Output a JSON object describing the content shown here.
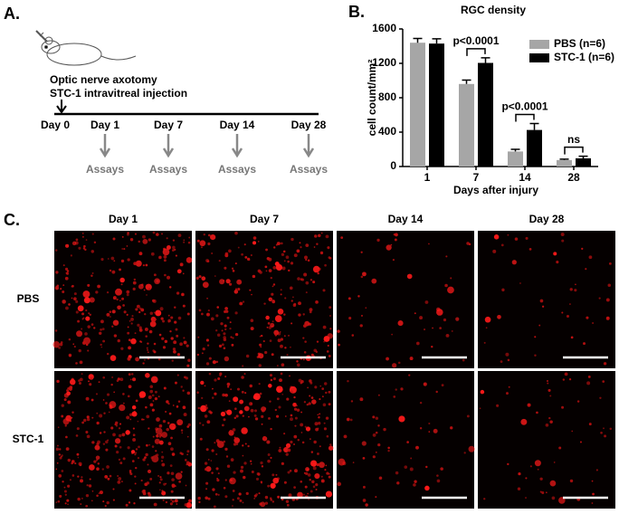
{
  "panel_a": {
    "label": "A.",
    "lines": [
      "Optic nerve axotomy",
      "STC-1 intravitreal injection"
    ],
    "start": "Day 0",
    "days": [
      "Day 1",
      "Day 7",
      "Day 14",
      "Day 28"
    ],
    "assay": "Assays"
  },
  "chart_data": {
    "type": "bar",
    "panel_label": "B.",
    "title": "RGC density",
    "x_label": "Days after injury",
    "y_label": "cell count/mm²",
    "categories": [
      "1",
      "7",
      "14",
      "28"
    ],
    "series": [
      {
        "name": "PBS (n=6)",
        "color": "#a6a6a6",
        "values": [
          1440,
          960,
          175,
          75
        ],
        "errors": [
          50,
          45,
          25,
          10
        ]
      },
      {
        "name": "STC-1 (n=6)",
        "color": "#000000",
        "values": [
          1430,
          1205,
          425,
          95
        ],
        "errors": [
          55,
          60,
          75,
          25
        ]
      }
    ],
    "ylim": [
      0,
      1600
    ],
    "yticks": [
      0,
      400,
      800,
      1200,
      1600
    ],
    "legend": "upper right",
    "annotations": [
      "p<0.0001",
      "p<0.0001",
      "ns"
    ]
  },
  "panel_c": {
    "label": "C.",
    "columns": [
      "Day 1",
      "Day 7",
      "Day 14",
      "Day 28"
    ],
    "rows": [
      "PBS",
      "STC-1"
    ]
  }
}
